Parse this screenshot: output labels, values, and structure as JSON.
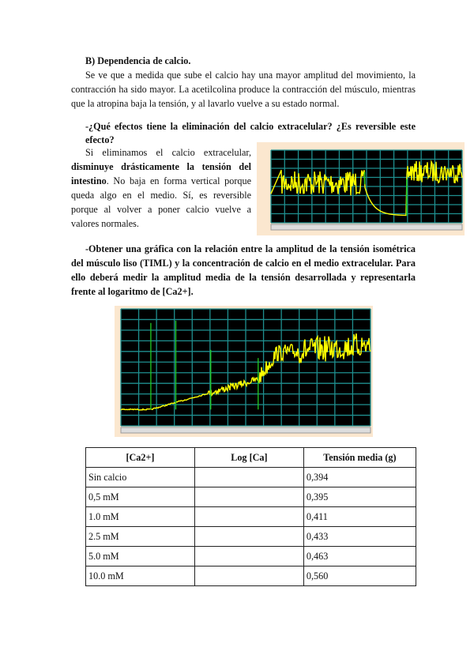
{
  "section_b": {
    "heading": "B) Dependencia de calcio.",
    "paragraph": "Se ve que a medida que sube el calcio hay una mayor amplitud del movimiento, la contracción ha sido mayor. La acetilcolina produce la contracción del músculo, mientras que la atropina baja la tensión, y al lavarlo vuelve a su estado normal."
  },
  "question1": {
    "text": "-¿Qué efectos tiene la eliminación del calcio extracelular? ¿Es reversible este efecto?",
    "answer_intro": "Si eliminamos el calcio extracelular, ",
    "answer_bold": "disminuye drásticamente la tensión del intestino",
    "answer_rest": ". No baja en forma vertical porque queda algo en el medio. Sí, es reversible porque al volver a poner calcio vuelve a valores normales."
  },
  "question2": {
    "text": "-Obtener una gráfica con la relación entre la amplitud de la tensión isométrica del músculo liso (TIML) y la concentración de calcio en el medio extracelular. Para ello deberá medir la amplitud media de la tensión desarrollada y representarla frente al logaritmo de [Ca2+]."
  },
  "chart_colors": {
    "background": "#000000",
    "grid": "#1f8f8f",
    "trace": "#ffff00",
    "marker": "#22cc22",
    "frame": "#fbe7cf"
  },
  "table": {
    "headers": [
      "[Ca2+]",
      "Log [Ca]",
      "Tensión media (g)"
    ],
    "rows": [
      [
        "Sin calcio",
        "",
        "0,394"
      ],
      [
        "0,5 mM",
        "",
        "0,395"
      ],
      [
        "1.0 mM",
        "",
        "0,411"
      ],
      [
        "2.5 mM",
        "",
        "0,433"
      ],
      [
        "5.0 mM",
        "",
        "0,463"
      ],
      [
        "10.0 mM",
        "",
        "0,560"
      ]
    ]
  }
}
